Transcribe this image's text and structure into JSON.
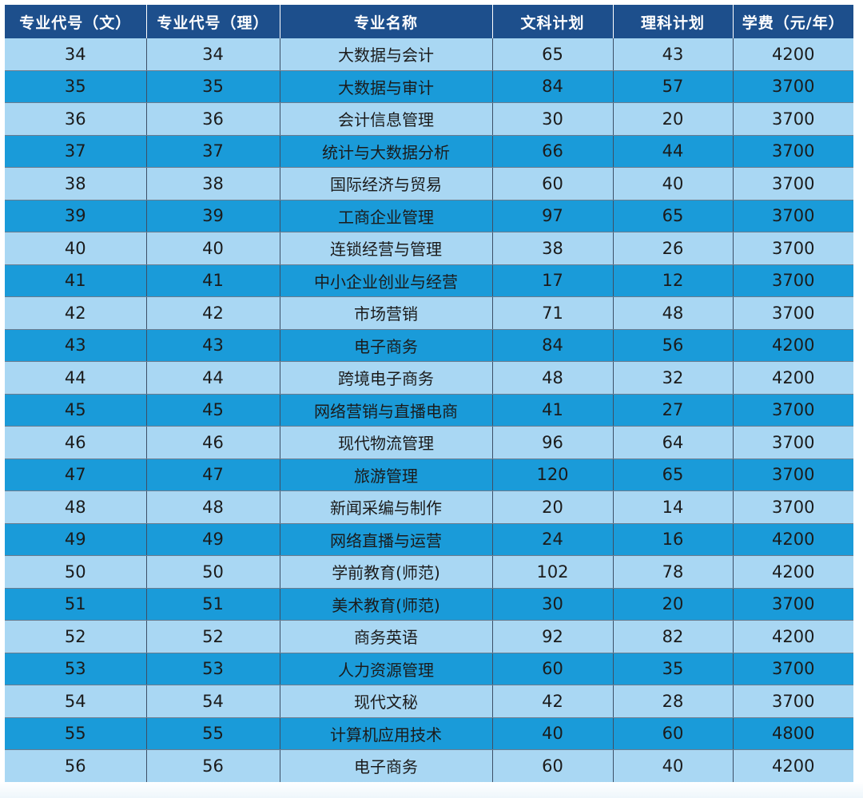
{
  "table": {
    "headers": [
      "专业代号（文）",
      "专业代号（理）",
      "专业名称",
      "文科计划",
      "理科计划",
      "学费（元/年）"
    ],
    "rows": [
      [
        "34",
        "34",
        "大数据与会计",
        "65",
        "43",
        "4200"
      ],
      [
        "35",
        "35",
        "大数据与审计",
        "84",
        "57",
        "3700"
      ],
      [
        "36",
        "36",
        "会计信息管理",
        "30",
        "20",
        "3700"
      ],
      [
        "37",
        "37",
        "统计与大数据分析",
        "66",
        "44",
        "3700"
      ],
      [
        "38",
        "38",
        "国际经济与贸易",
        "60",
        "40",
        "3700"
      ],
      [
        "39",
        "39",
        "工商企业管理",
        "97",
        "65",
        "3700"
      ],
      [
        "40",
        "40",
        "连锁经营与管理",
        "38",
        "26",
        "3700"
      ],
      [
        "41",
        "41",
        "中小企业创业与经营",
        "17",
        "12",
        "3700"
      ],
      [
        "42",
        "42",
        "市场营销",
        "71",
        "48",
        "3700"
      ],
      [
        "43",
        "43",
        "电子商务",
        "84",
        "56",
        "4200"
      ],
      [
        "44",
        "44",
        "跨境电子商务",
        "48",
        "32",
        "4200"
      ],
      [
        "45",
        "45",
        "网络营销与直播电商",
        "41",
        "27",
        "3700"
      ],
      [
        "46",
        "46",
        "现代物流管理",
        "96",
        "64",
        "3700"
      ],
      [
        "47",
        "47",
        "旅游管理",
        "120",
        "65",
        "3700"
      ],
      [
        "48",
        "48",
        "新闻采编与制作",
        "20",
        "14",
        "3700"
      ],
      [
        "49",
        "49",
        "网络直播与运营",
        "24",
        "16",
        "4200"
      ],
      [
        "50",
        "50",
        "学前教育(师范)",
        "102",
        "78",
        "4200"
      ],
      [
        "51",
        "51",
        "美术教育(师范)",
        "30",
        "20",
        "3700"
      ],
      [
        "52",
        "52",
        "商务英语",
        "92",
        "82",
        "4200"
      ],
      [
        "53",
        "53",
        "人力资源管理",
        "60",
        "35",
        "3700"
      ],
      [
        "54",
        "54",
        "现代文秘",
        "42",
        "28",
        "3700"
      ],
      [
        "55",
        "55",
        "计算机应用技术",
        "40",
        "60",
        "4800"
      ],
      [
        "56",
        "56",
        "电子商务",
        "60",
        "40",
        "4200"
      ]
    ]
  },
  "colors": {
    "header_bg": "#1d4f8c",
    "row_light": "#a9d7f3",
    "row_dark": "#1a9bd9"
  }
}
